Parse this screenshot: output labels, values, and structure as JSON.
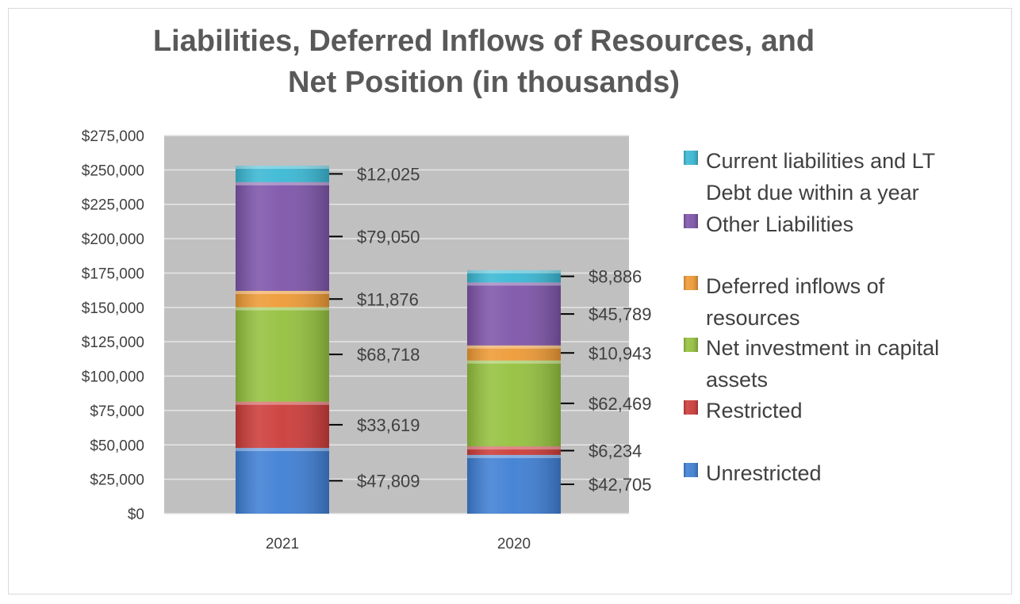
{
  "chart_data": {
    "type": "bar",
    "stacked": true,
    "title": "Liabilities, Deferred Inflows of Resources, and Net Position (in thousands)",
    "title_lines": [
      "Liabilities, Deferred Inflows of Resources, and",
      "Net Position (in thousands)"
    ],
    "categories": [
      "2021",
      "2020"
    ],
    "ylim": [
      0,
      275000
    ],
    "yticks": [
      0,
      25000,
      50000,
      75000,
      100000,
      125000,
      150000,
      175000,
      200000,
      225000,
      250000,
      275000
    ],
    "ytick_labels": [
      "$0",
      "$25,000",
      "$50,000",
      "$75,000",
      "$100,000",
      "$125,000",
      "$150,000",
      "$175,000",
      "$200,000",
      "$225,000",
      "$250,000",
      "$275,000"
    ],
    "grid": true,
    "legend_position": "right",
    "series": [
      {
        "name": "Unrestricted",
        "values": [
          47809,
          42705
        ],
        "labels": [
          "$47,809",
          "$42,705"
        ],
        "color": "#3f7fd4"
      },
      {
        "name": "Restricted",
        "values": [
          33619,
          6234
        ],
        "labels": [
          "$33,619",
          "$6,234"
        ],
        "color": "#cc3c3a"
      },
      {
        "name": "Net investment in capital assets",
        "values": [
          68718,
          62469
        ],
        "labels": [
          "$68,718",
          "$62,469"
        ],
        "color": "#94c13e"
      },
      {
        "name": "Deferred inflows of resources",
        "values": [
          11876,
          10943
        ],
        "labels": [
          "$11,876",
          "$10,943"
        ],
        "color": "#ee9a35"
      },
      {
        "name": "Other Liabilities",
        "values": [
          79050,
          45789
        ],
        "labels": [
          "$79,050",
          "$45,789"
        ],
        "color": "#7e55aa"
      },
      {
        "name": "Current liabilities and LT Debt due within a year",
        "values": [
          12025,
          8886
        ],
        "labels": [
          "$12,025",
          "$8,886"
        ],
        "color": "#3ab8d4"
      }
    ],
    "legend_entries": [
      {
        "lines": [
          "Current liabilities and LT",
          "Debt due within a year"
        ],
        "color": "#3ab8d4"
      },
      {
        "lines": [
          "Other Liabilities"
        ],
        "color": "#7e55aa"
      },
      {
        "lines": [
          "Deferred inflows of",
          "resources"
        ],
        "color": "#ee9a35"
      },
      {
        "lines": [
          "Net investment in capital",
          "assets"
        ],
        "color": "#94c13e"
      },
      {
        "lines": [
          "Restricted"
        ],
        "color": "#cc3c3a"
      },
      {
        "lines": [
          "Unrestricted"
        ],
        "color": "#3f7fd4"
      }
    ],
    "colors": {
      "plot_background": "#c0c0c0",
      "gridline": "#e6e6e6",
      "title": "#595959",
      "text": "#404040"
    }
  }
}
